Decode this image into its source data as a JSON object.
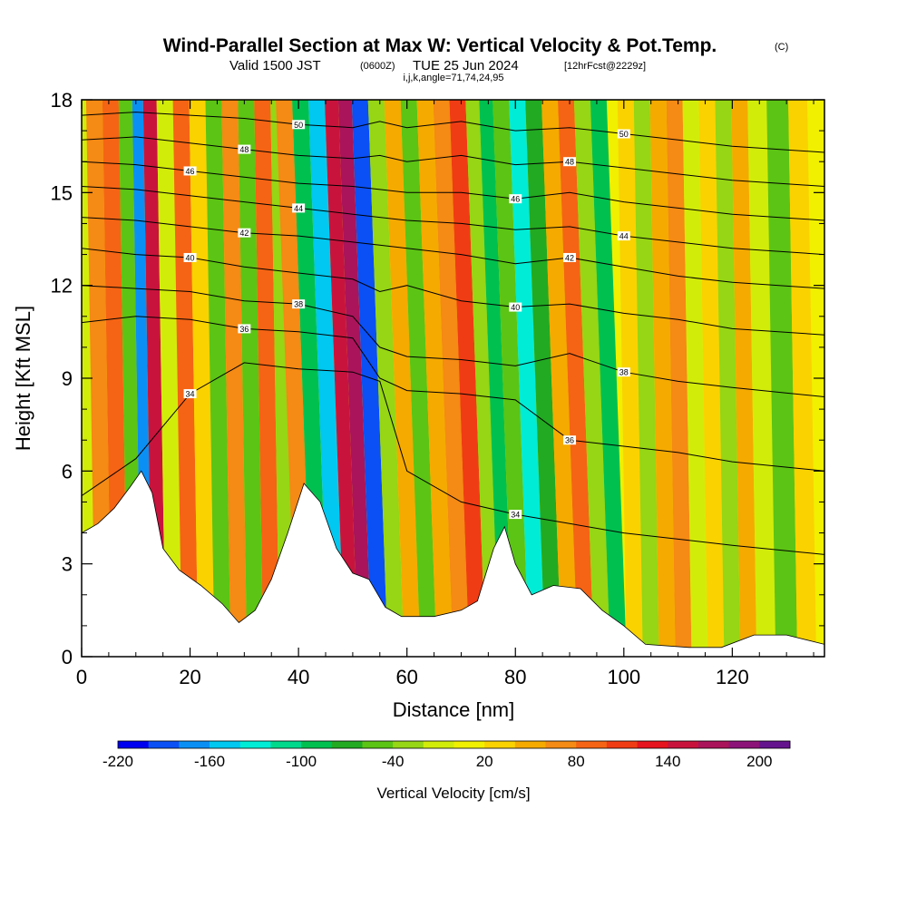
{
  "header": {
    "title": "Wind-Parallel Section at Max W: Vertical Velocity & Pot.Temp.",
    "title_mark": "(C)",
    "valid_main": "Valid 1500 JST",
    "valid_utc": "(0600Z)",
    "valid_date": "TUE 25 Jun 2024",
    "forecast": "[12hrFcst@2229z]",
    "indices": "i,j,k,angle=71,74,24,95"
  },
  "chart_data": {
    "type": "heatmap",
    "xlabel": "Distance [nm]",
    "ylabel": "Height [Kft MSL]",
    "xlim": [
      0,
      137
    ],
    "ylim": [
      0,
      18
    ],
    "x_ticks": [
      "0",
      "20",
      "40",
      "60",
      "80",
      "100",
      "120"
    ],
    "y_ticks": [
      "0",
      "3",
      "6",
      "9",
      "12",
      "15",
      "18"
    ],
    "colorbar": {
      "label": "Vertical Velocity [cm/s]",
      "min": -220,
      "max": 220,
      "step": 20,
      "tick_labels": [
        "-220",
        "-160",
        "-100",
        "-40",
        "20",
        "80",
        "140",
        "200"
      ],
      "colors": [
        "#0000f0",
        "#0a50f5",
        "#0a90f5",
        "#00c8f0",
        "#00ecd6",
        "#00d88c",
        "#00c050",
        "#22aa22",
        "#5cc414",
        "#96d614",
        "#d2ec0a",
        "#f0f000",
        "#fad200",
        "#f5aa00",
        "#f58a14",
        "#f56414",
        "#f03c14",
        "#e6141e",
        "#c8143c",
        "#aa145a",
        "#8c1478",
        "#64148c"
      ]
    },
    "terrain_kft": [
      {
        "x": 0,
        "h": 4.0
      },
      {
        "x": 3,
        "h": 4.3
      },
      {
        "x": 6,
        "h": 4.8
      },
      {
        "x": 9,
        "h": 5.5
      },
      {
        "x": 11,
        "h": 6.0
      },
      {
        "x": 13,
        "h": 5.3
      },
      {
        "x": 15,
        "h": 3.5
      },
      {
        "x": 18,
        "h": 2.8
      },
      {
        "x": 22,
        "h": 2.3
      },
      {
        "x": 26,
        "h": 1.7
      },
      {
        "x": 29,
        "h": 1.1
      },
      {
        "x": 32,
        "h": 1.5
      },
      {
        "x": 35,
        "h": 2.5
      },
      {
        "x": 38,
        "h": 4.0
      },
      {
        "x": 41,
        "h": 5.6
      },
      {
        "x": 44,
        "h": 5.0
      },
      {
        "x": 47,
        "h": 3.5
      },
      {
        "x": 50,
        "h": 2.7
      },
      {
        "x": 53,
        "h": 2.5
      },
      {
        "x": 56,
        "h": 1.6
      },
      {
        "x": 59,
        "h": 1.3
      },
      {
        "x": 65,
        "h": 1.3
      },
      {
        "x": 70,
        "h": 1.5
      },
      {
        "x": 73,
        "h": 1.8
      },
      {
        "x": 76,
        "h": 3.5
      },
      {
        "x": 78,
        "h": 4.2
      },
      {
        "x": 80,
        "h": 3.0
      },
      {
        "x": 83,
        "h": 2.0
      },
      {
        "x": 87,
        "h": 2.3
      },
      {
        "x": 92,
        "h": 2.2
      },
      {
        "x": 96,
        "h": 1.5
      },
      {
        "x": 100,
        "h": 1.0
      },
      {
        "x": 104,
        "h": 0.4
      },
      {
        "x": 112,
        "h": 0.3
      },
      {
        "x": 118,
        "h": 0.3
      },
      {
        "x": 124,
        "h": 0.7
      },
      {
        "x": 130,
        "h": 0.7
      },
      {
        "x": 137,
        "h": 0.4
      }
    ],
    "velocity_bands": [
      {
        "x": 1,
        "w": -10
      },
      {
        "x": 4,
        "w": 60
      },
      {
        "x": 7,
        "w": 90
      },
      {
        "x": 10,
        "w": -60
      },
      {
        "x": 12,
        "w": -170
      },
      {
        "x": 14,
        "w": 150
      },
      {
        "x": 17,
        "w": -20
      },
      {
        "x": 20,
        "w": 80
      },
      {
        "x": 23,
        "w": 30
      },
      {
        "x": 26,
        "w": -50
      },
      {
        "x": 29,
        "w": 60
      },
      {
        "x": 32,
        "w": -60
      },
      {
        "x": 35,
        "w": 80
      },
      {
        "x": 38,
        "w": -40
      },
      {
        "x": 41,
        "w": 70
      },
      {
        "x": 44,
        "w": -100
      },
      {
        "x": 47,
        "w": -150
      },
      {
        "x": 50,
        "w": 140
      },
      {
        "x": 52,
        "w": 160
      },
      {
        "x": 55,
        "w": -200
      },
      {
        "x": 58,
        "w": -40
      },
      {
        "x": 61,
        "w": 40
      },
      {
        "x": 64,
        "w": -50
      },
      {
        "x": 67,
        "w": 40
      },
      {
        "x": 70,
        "w": 60
      },
      {
        "x": 73,
        "w": 110
      },
      {
        "x": 76,
        "w": -40
      },
      {
        "x": 78,
        "w": -100
      },
      {
        "x": 81,
        "w": -60
      },
      {
        "x": 84,
        "w": -140
      },
      {
        "x": 87,
        "w": -70
      },
      {
        "x": 90,
        "w": 50
      },
      {
        "x": 93,
        "w": 80
      },
      {
        "x": 96,
        "w": -40
      },
      {
        "x": 99,
        "w": -100
      },
      {
        "x": 102,
        "w": 30
      },
      {
        "x": 105,
        "w": -30
      },
      {
        "x": 108,
        "w": 40
      },
      {
        "x": 111,
        "w": 60
      },
      {
        "x": 114,
        "w": -20
      },
      {
        "x": 117,
        "w": 30
      },
      {
        "x": 120,
        "w": -30
      },
      {
        "x": 123,
        "w": 40
      },
      {
        "x": 126,
        "w": -20
      },
      {
        "x": 130,
        "w": -60
      },
      {
        "x": 134,
        "w": 20
      }
    ],
    "isentropes": [
      {
        "level": 34,
        "label": "34",
        "h": [
          5.2,
          6.4,
          8.5,
          9.5,
          9.3,
          9.2,
          8.9,
          6.0,
          5.0,
          4.6,
          4.3,
          4.0,
          3.8,
          3.6,
          3.3
        ]
      },
      {
        "level": 36,
        "label": "36",
        "h": [
          10.8,
          11.0,
          10.9,
          10.6,
          10.5,
          10.3,
          9.0,
          8.6,
          8.5,
          8.3,
          7.0,
          6.8,
          6.6,
          6.3,
          6.0
        ]
      },
      {
        "level": 38,
        "label": "38",
        "h": [
          12.0,
          11.9,
          11.8,
          11.5,
          11.4,
          11.0,
          10.0,
          9.7,
          9.6,
          9.4,
          9.8,
          9.2,
          8.9,
          8.7,
          8.4
        ]
      },
      {
        "level": 40,
        "label": "40",
        "h": [
          13.2,
          13.0,
          12.9,
          12.6,
          12.4,
          12.2,
          11.8,
          12.0,
          11.5,
          11.3,
          11.4,
          11.1,
          10.9,
          10.6,
          10.4
        ]
      },
      {
        "level": 42,
        "label": "42",
        "h": [
          14.2,
          14.1,
          13.9,
          13.7,
          13.6,
          13.4,
          13.3,
          13.2,
          13.0,
          12.7,
          12.9,
          12.6,
          12.3,
          12.1,
          11.9
        ]
      },
      {
        "level": 44,
        "label": "44",
        "h": [
          15.2,
          15.1,
          14.9,
          14.7,
          14.5,
          14.3,
          14.2,
          14.1,
          14.0,
          13.8,
          13.9,
          13.6,
          13.4,
          13.2,
          13.0
        ]
      },
      {
        "level": 46,
        "label": "46",
        "h": [
          16.0,
          15.9,
          15.7,
          15.5,
          15.3,
          15.2,
          15.1,
          15.0,
          15.0,
          14.8,
          15.0,
          14.7,
          14.5,
          14.3,
          14.1
        ]
      },
      {
        "level": 48,
        "label": "48",
        "h": [
          16.7,
          16.8,
          16.6,
          16.4,
          16.2,
          16.1,
          16.2,
          16.0,
          16.2,
          15.9,
          16.0,
          15.8,
          15.6,
          15.4,
          15.2
        ]
      },
      {
        "level": 50,
        "label": "50",
        "h": [
          17.5,
          17.6,
          17.5,
          17.4,
          17.2,
          17.1,
          17.3,
          17.1,
          17.3,
          17.0,
          17.1,
          16.9,
          16.7,
          16.5,
          16.3
        ]
      }
    ],
    "isentrope_x": [
      0,
      10,
      20,
      30,
      40,
      50,
      55,
      60,
      70,
      80,
      90,
      100,
      110,
      120,
      137
    ]
  }
}
